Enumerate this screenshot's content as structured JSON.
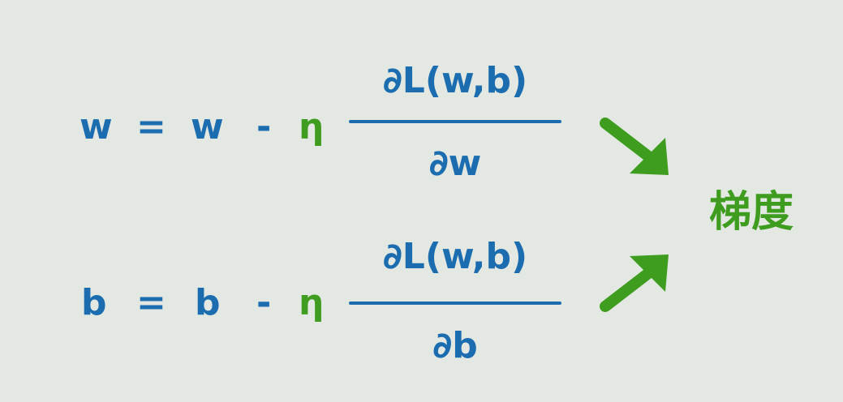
{
  "equations": [
    {
      "lhs": "w",
      "equals": "=",
      "var": "w",
      "minus": "-",
      "eta": "η",
      "numerator": "∂L(w,b)",
      "denominator": "∂w"
    },
    {
      "lhs": "b",
      "equals": "=",
      "var": "b",
      "minus": "-",
      "eta": "η",
      "numerator": "∂L(w,b)",
      "denominator": "∂b"
    }
  ],
  "label": "梯度",
  "colors": {
    "background": "#e3e8e3",
    "formula": "#1b6db0",
    "accent": "#3e9c1e"
  }
}
